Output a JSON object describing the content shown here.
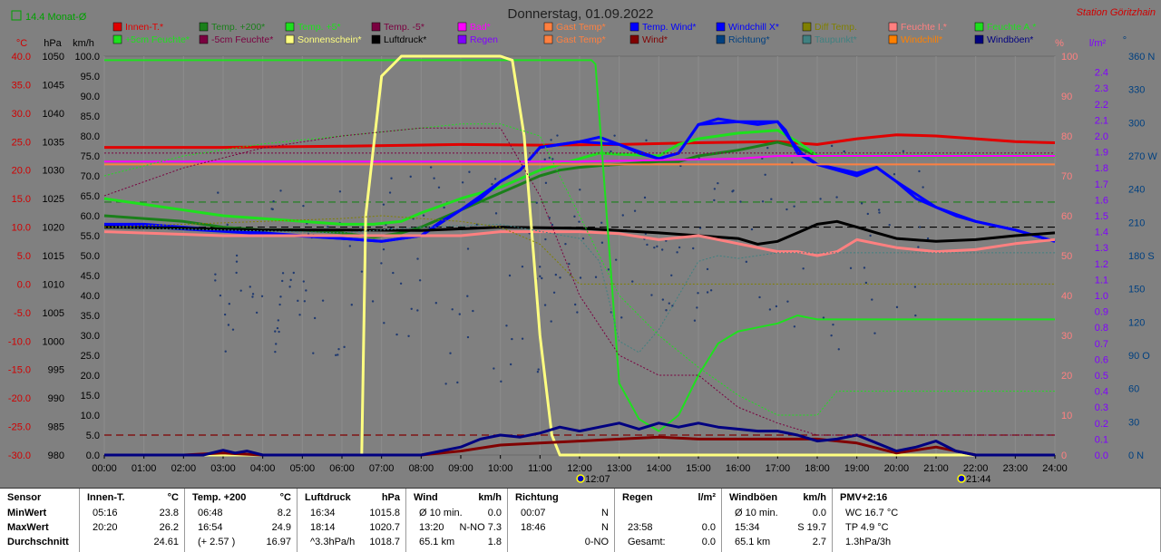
{
  "header": {
    "title": "Donnerstag, 01.09.2022",
    "station": "Station Göritzhain",
    "monthly_avg_label": "14.4 Monat-Ø"
  },
  "legend": [
    {
      "label": "Innen-T.*",
      "color": "#e00000"
    },
    {
      "label": "Temp. +200*",
      "color": "#1a7f1a"
    },
    {
      "label": "Temp. +5*",
      "color": "#1ee01e"
    },
    {
      "label": "Temp. -5*",
      "color": "#7a0040"
    },
    {
      "label": "Bad*",
      "color": "#ff00ff"
    },
    {
      "label": "Gast Temp*",
      "color": "#ff8040"
    },
    {
      "label": "Temp. Wind*",
      "color": "#0000ff"
    },
    {
      "label": "Windchill X*",
      "color": "#0000ff"
    },
    {
      "label": "Diff Temp.",
      "color": "#808000"
    },
    {
      "label": "Feuchte I.*",
      "color": "#ff8080"
    },
    {
      "label": "Feuchte A.*",
      "color": "#1ee01e"
    },
    {
      "label": "+5cm Feuchte*",
      "color": "#1ee01e"
    },
    {
      "label": "-5cm Feuchte*",
      "color": "#7a0040"
    },
    {
      "label": "Sonnenschein*",
      "color": "#ffff80"
    },
    {
      "label": "Luftdruck*",
      "color": "#000000"
    },
    {
      "label": "Regen",
      "color": "#8000ff"
    },
    {
      "label": "Gast Temp*",
      "color": "#ff8040"
    },
    {
      "label": "Wind*",
      "color": "#800000"
    },
    {
      "label": "Richtung*",
      "color": "#004080"
    },
    {
      "label": "Taupunkt*",
      "color": "#408080"
    },
    {
      "label": "Windchill*",
      "color": "#ff8000"
    },
    {
      "label": "Windböen*",
      "color": "#000080"
    }
  ],
  "axes": {
    "temp_unit": "°C",
    "pres_unit": "hPa",
    "wind_unit": "km/h",
    "hum_unit": "%",
    "rain_unit": "l/m²",
    "dir_unit": "°",
    "temp_ticks": [
      "40.0",
      "35.0",
      "30.0",
      "25.0",
      "20.0",
      "15.0",
      "10.0",
      "5.0",
      "0.0",
      "-5.0",
      "-10.0",
      "-15.0",
      "-20.0",
      "-25.0",
      "-30.0"
    ],
    "pres_ticks": [
      "1050",
      "1045",
      "1040",
      "1035",
      "1030",
      "1025",
      "1020",
      "1015",
      "1010",
      "1005",
      "1000",
      "995",
      "990",
      "985",
      "980"
    ],
    "wind_ticks": [
      "100.0",
      "95.0",
      "90.0",
      "85.0",
      "80.0",
      "75.0",
      "70.0",
      "65.0",
      "60.0",
      "55.0",
      "50.0",
      "45.0",
      "40.0",
      "35.0",
      "30.0",
      "25.0",
      "20.0",
      "15.0",
      "10.0",
      "5.0",
      "0.0"
    ],
    "hum_ticks": [
      "100",
      "90",
      "80",
      "70",
      "60",
      "50",
      "40",
      "30",
      "20",
      "10",
      "0"
    ],
    "rain_ticks": [
      "2.4",
      "2.3",
      "2.2",
      "2.1",
      "2.0",
      "1.9",
      "1.8",
      "1.7",
      "1.6",
      "1.5",
      "1.4",
      "1.3",
      "1.2",
      "1.1",
      "1.0",
      "0.9",
      "0.8",
      "0.7",
      "0.6",
      "0.5",
      "0.4",
      "0.3",
      "0.2",
      "0.1",
      "0.0"
    ],
    "dir_ticks": [
      "360 N",
      "330",
      "300",
      "270 W",
      "240",
      "210",
      "180 S",
      "150",
      "120",
      "90 O",
      "60",
      "30",
      "0 N"
    ],
    "time_ticks": [
      "00:00",
      "01:00",
      "02:00",
      "03:00",
      "04:00",
      "05:00",
      "06:00",
      "07:00",
      "08:00",
      "09:00",
      "10:00",
      "11:00",
      "12:00",
      "13:00",
      "14:00",
      "15:00",
      "16:00",
      "17:00",
      "18:00",
      "19:00",
      "20:00",
      "21:00",
      "22:00",
      "23:00",
      "24:00"
    ],
    "sunrise": "12:07",
    "sunset": "21:44"
  },
  "chart_data": {
    "type": "line",
    "x_unit": "hour",
    "xlim": [
      0,
      24
    ],
    "series": [
      {
        "name": "Innen-T.*",
        "unit": "°C",
        "color": "#e00000",
        "width": 3,
        "x": [
          0,
          3,
          6,
          9,
          11,
          13,
          15,
          17,
          18,
          19,
          20,
          21,
          22,
          23,
          24
        ],
        "y": [
          24.0,
          24.0,
          24.2,
          24.5,
          24.4,
          24.5,
          24.8,
          25.0,
          24.5,
          25.5,
          26.2,
          26.0,
          25.5,
          25.0,
          24.8
        ]
      },
      {
        "name": "Temp. +200*",
        "unit": "°C",
        "color": "#1a7f1a",
        "width": 3,
        "x": [
          0,
          1,
          2,
          3,
          4,
          5,
          6,
          6.8,
          7.5,
          8,
          9,
          10,
          11,
          11.5,
          12,
          12.5,
          13,
          14,
          14.5,
          15,
          15.5,
          16,
          17,
          17.5,
          18,
          24
        ],
        "y": [
          12,
          11.5,
          11,
          10,
          9.5,
          9.5,
          9.0,
          8.2,
          9,
          10,
          13,
          16,
          19,
          20,
          20.5,
          20.8,
          21,
          21.5,
          21.5,
          22.5,
          23,
          23.5,
          24.9,
          24,
          22.5,
          22.5
        ]
      },
      {
        "name": "Temp. +5*",
        "unit": "°C",
        "color": "#1ee01e",
        "width": 3,
        "x": [
          0,
          1,
          2,
          3,
          4,
          5,
          6,
          6.8,
          7.5,
          8,
          9,
          10,
          11,
          11.5,
          12,
          12.5,
          13,
          14,
          14.5,
          15,
          15.5,
          16,
          17,
          17.5,
          18,
          24
        ],
        "y": [
          15,
          14,
          13,
          12,
          11.5,
          11,
          10.5,
          10.5,
          11,
          12.5,
          15,
          17,
          20,
          21,
          22,
          23,
          22.8,
          22.5,
          24.5,
          25.5,
          26,
          26.5,
          27,
          25,
          22.5,
          22.5
        ]
      },
      {
        "name": "Temp. Wind*",
        "unit": "°C",
        "color": "#0000ff",
        "width": 3,
        "x": [
          0,
          1,
          2,
          3,
          4,
          5,
          6,
          7,
          8,
          8.5,
          9,
          9.5,
          10,
          10.5,
          11,
          11.5,
          12,
          12.5,
          13,
          13.5,
          14,
          14.5,
          15,
          15.5,
          16,
          16.5,
          17,
          17.2,
          17.5,
          18,
          18.5,
          19,
          19.5,
          20,
          20.5,
          21,
          21.5,
          22,
          23,
          24
        ],
        "y": [
          10.5,
          10.5,
          10,
          9.5,
          9,
          8.5,
          8,
          7.5,
          8.5,
          11,
          13,
          15,
          18,
          20,
          24,
          24.5,
          25,
          25.8,
          24.5,
          23,
          22,
          23,
          28,
          29,
          28.5,
          28,
          28.5,
          27,
          23,
          21,
          20,
          19,
          20.5,
          18,
          15,
          13.5,
          12,
          11,
          9.5,
          7.5
        ]
      },
      {
        "name": "Windchill X*",
        "unit": "°C",
        "color": "#0000ff",
        "width": 3,
        "x": [
          0,
          6,
          7,
          8,
          9,
          10,
          10.5,
          11,
          12,
          13,
          14,
          14.5,
          15,
          16,
          17,
          17.3,
          17.6,
          18,
          19,
          19.5,
          20,
          21,
          22,
          23,
          24
        ],
        "y": [
          10.5,
          8,
          7.5,
          8.5,
          13,
          18,
          20,
          24,
          25,
          24.5,
          22,
          23,
          28,
          28.5,
          28.5,
          25.5,
          23,
          21,
          19.5,
          20.5,
          18,
          13.5,
          11,
          9.5,
          7.5
        ]
      },
      {
        "name": "Bad*",
        "unit": "°C",
        "color": "#ff00ff",
        "width": 2,
        "x": [
          0,
          6,
          12,
          16,
          17,
          18,
          24
        ],
        "y": [
          21.5,
          21.5,
          21.5,
          22,
          22.5,
          22.5,
          22.5
        ]
      },
      {
        "name": "Gast Temp*",
        "unit": "°C",
        "color": "#ff8040",
        "width": 2,
        "x": [
          0,
          12,
          24
        ],
        "y": [
          21,
          21,
          21
        ]
      },
      {
        "name": "Temp. -5*",
        "unit": "°C",
        "color": "#7a0040",
        "width": 1,
        "x": [
          0,
          6,
          12,
          16,
          18,
          24
        ],
        "y": [
          23,
          23,
          23,
          23,
          23,
          23
        ]
      },
      {
        "name": "Luftdruck*",
        "unit": "hPa",
        "color": "#000000",
        "width": 3,
        "x": [
          0,
          2,
          4,
          6,
          8,
          10,
          12,
          14,
          15,
          16,
          16.5,
          17,
          17.5,
          18,
          18.5,
          19,
          19.5,
          20,
          21,
          22,
          23,
          24
        ],
        "y": [
          1020,
          1019.8,
          1019.5,
          1019.5,
          1019.4,
          1020,
          1019.8,
          1019,
          1018.5,
          1018,
          1017,
          1017.5,
          1019,
          1020.5,
          1021,
          1020,
          1019,
          1018,
          1017.5,
          1017.8,
          1018.5,
          1019
        ]
      },
      {
        "name": "Feuchte I.*",
        "unit": "%",
        "color": "#ff8080",
        "width": 3,
        "x": [
          0,
          3,
          6,
          9,
          10,
          11,
          12,
          13,
          14,
          15,
          16,
          17,
          17.5,
          18,
          18.5,
          19,
          19.5,
          20,
          21,
          22,
          23,
          24
        ],
        "y": [
          56,
          55,
          55,
          55,
          56,
          56,
          56,
          55.5,
          54,
          55,
          53,
          51,
          51,
          50,
          51,
          54,
          53,
          52,
          51,
          51.5,
          53,
          54
        ]
      },
      {
        "name": "Feuchte A.*",
        "unit": "%",
        "color": "#1ee01e",
        "width": 2,
        "x": [
          0,
          12.3,
          12.4,
          13,
          13.5,
          14,
          14.5,
          15,
          15.5,
          16,
          16.5,
          17,
          17.5,
          18,
          24
        ],
        "y": [
          99,
          99,
          98,
          18,
          9,
          6,
          10,
          20,
          28,
          31,
          32,
          33,
          35,
          34,
          34
        ]
      },
      {
        "name": "Sonnenschein*",
        "unit": "%",
        "color": "#ffff80",
        "width": 3,
        "x": [
          0,
          6.5,
          6.6,
          7,
          7.5,
          8,
          9,
          10,
          10.3,
          10.6,
          11,
          11.3,
          11.5,
          12,
          24
        ],
        "y": [
          0,
          0,
          60,
          95,
          100,
          100,
          100,
          100,
          99,
          80,
          30,
          5,
          0,
          0,
          0
        ]
      },
      {
        "name": "Taupunkt*",
        "unit": "°C",
        "color": "#408080",
        "width": 1,
        "x": [
          0,
          6,
          8,
          10,
          12,
          12.5,
          13,
          13.5,
          14,
          14.5,
          15,
          15.5,
          16,
          17,
          24
        ],
        "y": [
          10,
          9,
          10,
          10.5,
          8,
          4,
          -10,
          -12,
          -8,
          -2,
          4,
          5,
          4.5,
          5.5,
          5.5
        ]
      },
      {
        "name": "Wind*",
        "unit": "km/h",
        "color": "#800000",
        "width": 3,
        "x": [
          0,
          2,
          3,
          4,
          5,
          8,
          9,
          10,
          11,
          12,
          13,
          14,
          15,
          16,
          17,
          18,
          19,
          20,
          21,
          22,
          24
        ],
        "y": [
          0,
          0,
          0.5,
          0,
          0,
          0,
          1,
          2.5,
          3,
          3.5,
          4,
          4.5,
          4,
          4,
          4,
          4,
          3,
          0.5,
          2,
          0,
          0
        ]
      },
      {
        "name": "Windböen*",
        "unit": "km/h",
        "color": "#000080",
        "width": 3,
        "x": [
          0,
          2.5,
          3,
          3.3,
          3.6,
          4,
          8,
          9,
          9.5,
          10,
          10.5,
          11,
          11.5,
          12,
          12.5,
          13,
          13.5,
          14,
          14.5,
          15,
          15.5,
          16,
          16.5,
          17,
          17.5,
          18,
          18.5,
          19,
          19.5,
          20,
          20.5,
          21,
          21.5,
          22,
          24
        ],
        "y": [
          0,
          0,
          1.2,
          0.5,
          1,
          0,
          0,
          2,
          4,
          5,
          4.5,
          5.5,
          7,
          6,
          7,
          8,
          6.5,
          8,
          7,
          8,
          7,
          6.5,
          6,
          6,
          5,
          3.5,
          4,
          5,
          3,
          1,
          2,
          3.5,
          1,
          0,
          0
        ]
      },
      {
        "name": "+5cm Feuchte*",
        "unit": "%",
        "color": "#1ee01e",
        "width": 1,
        "x": [
          0,
          2,
          4,
          6,
          8,
          9,
          10,
          11,
          12,
          13,
          14,
          15,
          16,
          17,
          18,
          18.5,
          19,
          24
        ],
        "y": [
          70,
          75,
          78,
          80,
          82,
          83,
          83,
          80,
          60,
          40,
          30,
          22,
          15,
          10,
          10,
          16,
          16,
          16
        ]
      },
      {
        "name": "-5cm Feuchte*",
        "unit": "%",
        "color": "#7a0040",
        "width": 1,
        "x": [
          0,
          2,
          4,
          6,
          8,
          10,
          11,
          12,
          13,
          14,
          15,
          16,
          17,
          18,
          24
        ],
        "y": [
          65,
          72,
          77,
          80,
          82,
          82,
          65,
          40,
          25,
          20,
          20,
          12,
          8,
          5,
          5
        ]
      },
      {
        "name": "Diff Temp.",
        "unit": "°C",
        "color": "#808000",
        "width": 1,
        "x": [
          0,
          6,
          7,
          9,
          10,
          11,
          12,
          14,
          16,
          18,
          24
        ],
        "y": [
          10,
          11.5,
          12,
          11,
          10,
          7,
          0,
          0,
          0,
          0,
          0
        ]
      }
    ],
    "reference_lines": [
      {
        "name": "Monat-Ø",
        "unit": "°C",
        "value": 14.4,
        "color": "#1a7f1a",
        "dash": true
      },
      {
        "name": "Luftdruck ref",
        "unit": "hPa",
        "value": 1020,
        "color": "#000000",
        "dash": true
      },
      {
        "name": "Regen ref",
        "unit": "%",
        "value": 5,
        "color": "#800000",
        "dash": true
      }
    ]
  },
  "stats": [
    {
      "title": "Sensor",
      "unit": "",
      "rows": [
        "MinWert",
        "MaxWert",
        "Durchschnitt"
      ],
      "values": [
        "",
        "",
        ""
      ],
      "extra": [
        "",
        "",
        ""
      ]
    },
    {
      "title": "Innen-T.",
      "unit": "°C",
      "rows": [
        "05:16",
        "20:20",
        ""
      ],
      "values": [
        "23.8",
        "26.2",
        "24.61"
      ],
      "extra": [
        "",
        "",
        ""
      ]
    },
    {
      "title": "Temp. +200",
      "unit": "°C",
      "rows": [
        "06:48",
        "16:54",
        "(+ 2.57 )"
      ],
      "values": [
        "8.2",
        "24.9",
        "16.97"
      ],
      "extra": [
        "",
        "",
        ""
      ]
    },
    {
      "title": "Luftdruck",
      "unit": "hPa",
      "rows": [
        "16:34",
        "18:14",
        "^3.3hPa/h"
      ],
      "values": [
        "1015.8",
        "1020.7",
        "1018.7"
      ],
      "extra": [
        "",
        "",
        ""
      ]
    },
    {
      "title": "Wind",
      "unit": "km/h",
      "rows": [
        "Ø 10 min.",
        "13:20",
        "65.1 km"
      ],
      "values": [
        "0.0",
        "N-NO 7.3",
        "1.8"
      ],
      "extra": [
        "",
        "",
        ""
      ]
    },
    {
      "title": "Richtung",
      "unit": "",
      "rows": [
        "00:07",
        "18:46",
        ""
      ],
      "values": [
        "N",
        "N",
        "0-NO"
      ],
      "extra": [
        "",
        "",
        ""
      ]
    },
    {
      "title": "Regen",
      "unit": "l/m²",
      "rows": [
        "",
        "23:58",
        "Gesamt:"
      ],
      "values": [
        "",
        "0.0",
        "0.0"
      ],
      "extra": [
        "",
        "",
        ""
      ]
    },
    {
      "title": "Windböen",
      "unit": "km/h",
      "rows": [
        "Ø 10 min.",
        "15:34",
        "65.1 km"
      ],
      "values": [
        "0.0",
        "S 19.7",
        "2.7"
      ],
      "extra": [
        "",
        "",
        ""
      ]
    },
    {
      "title": "PMV+2:16",
      "unit": "",
      "rows": [
        "WC 16.7 °C",
        "TP 4.9 °C",
        "1.3hPa/3h"
      ],
      "values": [
        "",
        "",
        ""
      ],
      "extra": [
        "",
        "",
        ""
      ]
    }
  ]
}
